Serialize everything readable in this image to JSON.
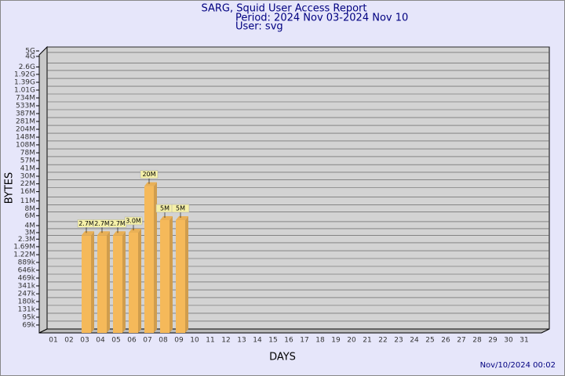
{
  "chart_data": {
    "type": "bar",
    "title": "SARG, Squid User Access Report",
    "subtitle": "Period: 2024 Nov 03-2024 Nov 10",
    "user": "User: svg",
    "xlabel": "DAYS",
    "ylabel": "BYTES",
    "footer": "Nov/10/2024 00:02",
    "categories": [
      "01",
      "02",
      "03",
      "04",
      "05",
      "06",
      "07",
      "08",
      "09",
      "10",
      "11",
      "12",
      "13",
      "14",
      "15",
      "16",
      "17",
      "18",
      "19",
      "20",
      "21",
      "22",
      "23",
      "24",
      "25",
      "26",
      "27",
      "28",
      "29",
      "30",
      "31"
    ],
    "values": [
      null,
      null,
      2700000,
      2700000,
      2700000,
      3000000,
      20000000,
      5000000,
      5000000,
      null,
      null,
      null,
      null,
      null,
      null,
      null,
      null,
      null,
      null,
      null,
      null,
      null,
      null,
      null,
      null,
      null,
      null,
      null,
      null,
      null,
      null
    ],
    "value_labels": [
      null,
      null,
      "2.7M",
      "2.7M",
      "2.7M",
      "3.0M",
      "20M",
      "5M",
      "5M",
      null,
      null,
      null,
      null,
      null,
      null,
      null,
      null,
      null,
      null,
      null,
      null,
      null,
      null,
      null,
      null,
      null,
      null,
      null,
      null,
      null,
      null
    ],
    "color": "#f5b95a",
    "log_scale": true,
    "grid": true,
    "ylim": [
      50000,
      5000000000
    ],
    "yticks": [
      {
        "value": 69000,
        "label": "69k"
      },
      {
        "value": 95000,
        "label": "95k"
      },
      {
        "value": 131000,
        "label": "131k"
      },
      {
        "value": 180000,
        "label": "180k"
      },
      {
        "value": 247000,
        "label": "247k"
      },
      {
        "value": 341000,
        "label": "341k"
      },
      {
        "value": 469000,
        "label": "469k"
      },
      {
        "value": 646000,
        "label": "646k"
      },
      {
        "value": 889000,
        "label": "889k"
      },
      {
        "value": 1220000,
        "label": "1.22M"
      },
      {
        "value": 1690000,
        "label": "1.69M"
      },
      {
        "value": 2300000,
        "label": "2.3M"
      },
      {
        "value": 3000000,
        "label": "3M"
      },
      {
        "value": 4000000,
        "label": "4M"
      },
      {
        "value": 6000000,
        "label": "6M"
      },
      {
        "value": 8000000,
        "label": "8M"
      },
      {
        "value": 11000000,
        "label": "11M"
      },
      {
        "value": 16000000,
        "label": "16M"
      },
      {
        "value": 22000000,
        "label": "22M"
      },
      {
        "value": 30000000,
        "label": "30M"
      },
      {
        "value": 41000000,
        "label": "41M"
      },
      {
        "value": 57000000,
        "label": "57M"
      },
      {
        "value": 78000000,
        "label": "78M"
      },
      {
        "value": 108000000,
        "label": "108M"
      },
      {
        "value": 148000000,
        "label": "148M"
      },
      {
        "value": 204000000,
        "label": "204M"
      },
      {
        "value": 281000000,
        "label": "281M"
      },
      {
        "value": 387000000,
        "label": "387M"
      },
      {
        "value": 533000000,
        "label": "533M"
      },
      {
        "value": 734000000,
        "label": "734M"
      },
      {
        "value": 1010000000,
        "label": "1.01G"
      },
      {
        "value": 1390000000,
        "label": "1.39G"
      },
      {
        "value": 1920000000,
        "label": "1.92G"
      },
      {
        "value": 2600000000,
        "label": "2.6G"
      },
      {
        "value": 4000000000,
        "label": "4G"
      },
      {
        "value": 5000000000,
        "label": "5G"
      }
    ]
  }
}
